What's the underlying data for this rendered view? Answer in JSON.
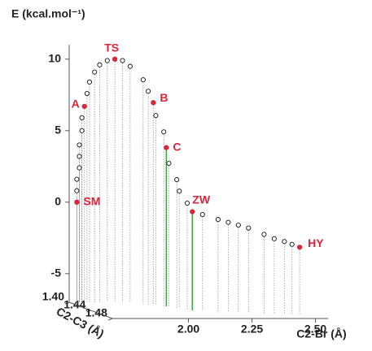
{
  "chart_data": {
    "type": "scatter3d",
    "ylabel": "E (kcal.mol⁻¹)",
    "xlabel": "C2-Br (Å)",
    "zlabel": "C2-C3 (Å)",
    "xlim": [
      1.7,
      2.55
    ],
    "ylim": [
      -7,
      11
    ],
    "zlim": [
      1.4,
      1.48
    ],
    "yticks": [
      -5,
      0,
      5,
      10
    ],
    "xticks": [
      {
        "value": 2.0,
        "label": "2.00"
      },
      {
        "value": 2.25,
        "label": "2.25"
      },
      {
        "value": 2.5,
        "label": "2.50"
      }
    ],
    "zticks": [
      {
        "value": 1.4,
        "label": "1.40"
      },
      {
        "value": 1.44,
        "label": "1.44"
      },
      {
        "value": 1.48,
        "label": "1.48"
      }
    ],
    "marker_color": "#111111",
    "drop_line_color": "#9a9a9a",
    "label_color": "#e0243a",
    "x": [
      1.73,
      1.73,
      1.73,
      1.74,
      1.74,
      1.74,
      1.75,
      1.75,
      1.76,
      1.77,
      1.78,
      1.8,
      1.82,
      1.85,
      1.88,
      1.91,
      1.94,
      1.97,
      1.99,
      2.01,
      2.02,
      2.03,
      2.04,
      2.05,
      2.06,
      2.07,
      2.08,
      2.1,
      2.14,
      2.18,
      2.22,
      2.26,
      2.3,
      2.34,
      2.38,
      2.42,
      2.45,
      2.48
    ],
    "z": [
      1.4,
      1.4,
      1.4,
      1.4,
      1.4,
      1.4,
      1.4,
      1.4,
      1.4,
      1.4,
      1.4,
      1.4,
      1.4,
      1.4,
      1.4,
      1.4,
      1.4,
      1.41,
      1.41,
      1.41,
      1.41,
      1.42,
      1.42,
      1.42,
      1.43,
      1.43,
      1.44,
      1.44,
      1.44,
      1.45,
      1.45,
      1.45,
      1.45,
      1.46,
      1.46,
      1.46,
      1.46,
      1.46
    ],
    "y": [
      0,
      0.8,
      1.6,
      2.4,
      3.2,
      4.0,
      5.0,
      5.9,
      6.7,
      7.6,
      8.4,
      9.1,
      9.6,
      9.9,
      10.0,
      9.9,
      9.5,
      8.7,
      7.9,
      7.1,
      6.2,
      5.2,
      4.1,
      3.0,
      2.0,
      1.2,
      0.5,
      -0.1,
      -0.3,
      -0.5,
      -0.7,
      -0.9,
      -1.1,
      -1.4,
      -1.7,
      -1.9,
      -2.1,
      -2.3
    ],
    "annotations": [
      {
        "label": "SM",
        "x": 1.73,
        "z": 1.4,
        "y": 0
      },
      {
        "label": "A",
        "x": 1.76,
        "z": 1.4,
        "y": 6.7
      },
      {
        "label": "TS",
        "x": 1.88,
        "z": 1.4,
        "y": 10.0
      },
      {
        "label": "B",
        "x": 2.01,
        "z": 1.41,
        "y": 7.1
      },
      {
        "label": "C",
        "x": 2.04,
        "z": 1.42,
        "y": 4.1,
        "drop_color": "#3aa84a"
      },
      {
        "label": "ZW",
        "x": 2.1,
        "z": 1.44,
        "y": -0.1,
        "drop_color": "#3aa84a"
      },
      {
        "label": "HY",
        "x": 2.48,
        "z": 1.46,
        "y": -2.3
      }
    ]
  }
}
